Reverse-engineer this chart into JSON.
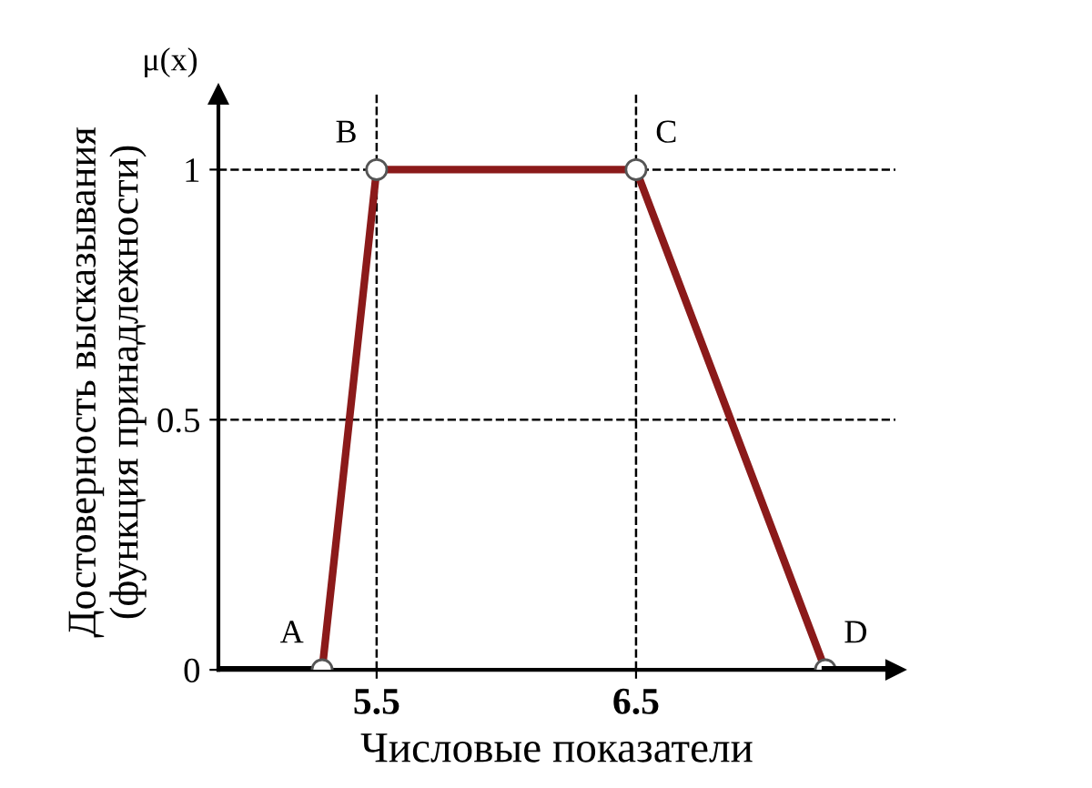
{
  "chart_data": {
    "type": "line",
    "xlabel": "Числовые показатели",
    "ylabel": "Достоверность высказывания\n(функция принадлежности)",
    "annotations": [
      "μ(x)",
      {
        "text": "A",
        "x": 5.29,
        "y": 0
      },
      {
        "text": "B",
        "x": 5.5,
        "y": 1
      },
      {
        "text": "C",
        "x": 6.5,
        "y": 1
      },
      {
        "text": "D",
        "x": 7.23,
        "y": 0
      }
    ],
    "series": [
      {
        "color": "#000000",
        "x": [
          4.89,
          5.29
        ],
        "values": [
          0,
          0
        ]
      },
      {
        "color": "#8b1a1a",
        "x": [
          5.29,
          5.5,
          6.5,
          7.23
        ],
        "values": [
          0,
          1,
          1,
          0
        ],
        "marker": "circle"
      },
      {
        "color": "#000000",
        "x": [
          7.23,
          7.45
        ],
        "values": [
          0,
          0
        ]
      }
    ],
    "xlim": [
      4.89,
      7.5
    ],
    "xticks": [
      5.5,
      6.5
    ],
    "ylim": [
      0,
      1.15
    ],
    "yticks": [
      0,
      0.5,
      1
    ],
    "ref_lines": [
      {
        "axis": "y",
        "value": 1,
        "line_style": "dashed",
        "color": "#000000"
      },
      {
        "axis": "y",
        "value": 0.5,
        "line_style": "dashed",
        "color": "#000000"
      },
      {
        "axis": "x",
        "value": 5.5,
        "line_style": "dashed",
        "color": "#000000"
      },
      {
        "axis": "x",
        "value": 6.5,
        "line_style": "dashed",
        "color": "#000000"
      }
    ],
    "grid": false,
    "legend": false,
    "line_style": "solid"
  }
}
